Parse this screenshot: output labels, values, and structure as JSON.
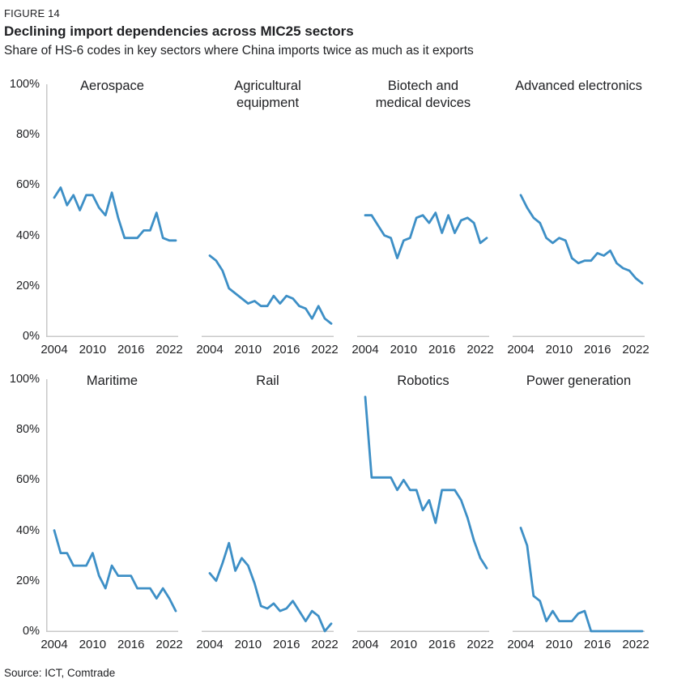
{
  "figure": {
    "label": "FIGURE 14",
    "title": "Declining import dependencies across MIC25 sectors",
    "subtitle": "Share of HS-6 codes in key sectors where China imports twice as much as it exports",
    "source": "Source: ICT, Comtrade"
  },
  "colors": {
    "line": "#3D8FC6",
    "axis": "#C9C9C9",
    "text": "#202124"
  },
  "chart_data": {
    "type": "line",
    "layout": {
      "rows": 2,
      "cols": 4,
      "grid": "off",
      "y_axis_labels": "first column of each row only",
      "legend": "none"
    },
    "x": [
      2004,
      2005,
      2006,
      2007,
      2008,
      2009,
      2010,
      2011,
      2012,
      2013,
      2014,
      2015,
      2016,
      2017,
      2018,
      2019,
      2020,
      2021,
      2022,
      2023
    ],
    "x_tick_years": [
      2004,
      2010,
      2016,
      2022
    ],
    "x_tick_labels": [
      "2004",
      "2010",
      "2016",
      "2022"
    ],
    "ylim": [
      0,
      100
    ],
    "y_tick_values": [
      0,
      20,
      40,
      60,
      80,
      100
    ],
    "y_tick_labels": [
      "0%",
      "20%",
      "40%",
      "60%",
      "80%",
      "100%"
    ],
    "unit": "%",
    "series": [
      {
        "name": "Aerospace",
        "title_lines": [
          "Aerospace"
        ],
        "values": [
          55,
          59,
          52,
          56,
          50,
          56,
          56,
          51,
          48,
          57,
          47,
          39,
          39,
          39,
          42,
          42,
          49,
          39,
          38,
          38
        ]
      },
      {
        "name": "Agricultural equipment",
        "title_lines": [
          "Agricultural",
          "equipment"
        ],
        "values": [
          32,
          30,
          26,
          19,
          17,
          15,
          13,
          14,
          12,
          12,
          16,
          13,
          16,
          15,
          12,
          11,
          7,
          12,
          7,
          5
        ]
      },
      {
        "name": "Biotech and medical devices",
        "title_lines": [
          "Biotech and",
          "medical devices"
        ],
        "values": [
          48,
          48,
          44,
          40,
          39,
          31,
          38,
          39,
          47,
          48,
          45,
          49,
          41,
          48,
          41,
          46,
          47,
          45,
          37,
          39
        ]
      },
      {
        "name": "Advanced electronics",
        "title_lines": [
          "Advanced electronics"
        ],
        "values": [
          56,
          51,
          47,
          45,
          39,
          37,
          39,
          38,
          31,
          29,
          30,
          30,
          33,
          32,
          34,
          29,
          27,
          26,
          23,
          21
        ]
      },
      {
        "name": "Maritime",
        "title_lines": [
          "Maritime"
        ],
        "values": [
          40,
          31,
          31,
          26,
          26,
          26,
          31,
          22,
          17,
          26,
          22,
          22,
          22,
          17,
          17,
          17,
          13,
          17,
          13,
          8
        ]
      },
      {
        "name": "Rail",
        "title_lines": [
          "Rail"
        ],
        "values": [
          23,
          20,
          27,
          35,
          24,
          29,
          26,
          19,
          10,
          9,
          11,
          8,
          9,
          12,
          8,
          4,
          8,
          6,
          0,
          3
        ]
      },
      {
        "name": "Robotics",
        "title_lines": [
          "Robotics"
        ],
        "values": [
          93,
          61,
          61,
          61,
          61,
          56,
          60,
          56,
          56,
          48,
          52,
          43,
          56,
          56,
          56,
          52,
          45,
          36,
          29,
          25
        ]
      },
      {
        "name": "Power generation",
        "title_lines": [
          "Power generation"
        ],
        "values": [
          41,
          34,
          14,
          12,
          4,
          8,
          4,
          4,
          4,
          7,
          8,
          0,
          0,
          0,
          0,
          0,
          0,
          0,
          0,
          0
        ]
      }
    ]
  }
}
